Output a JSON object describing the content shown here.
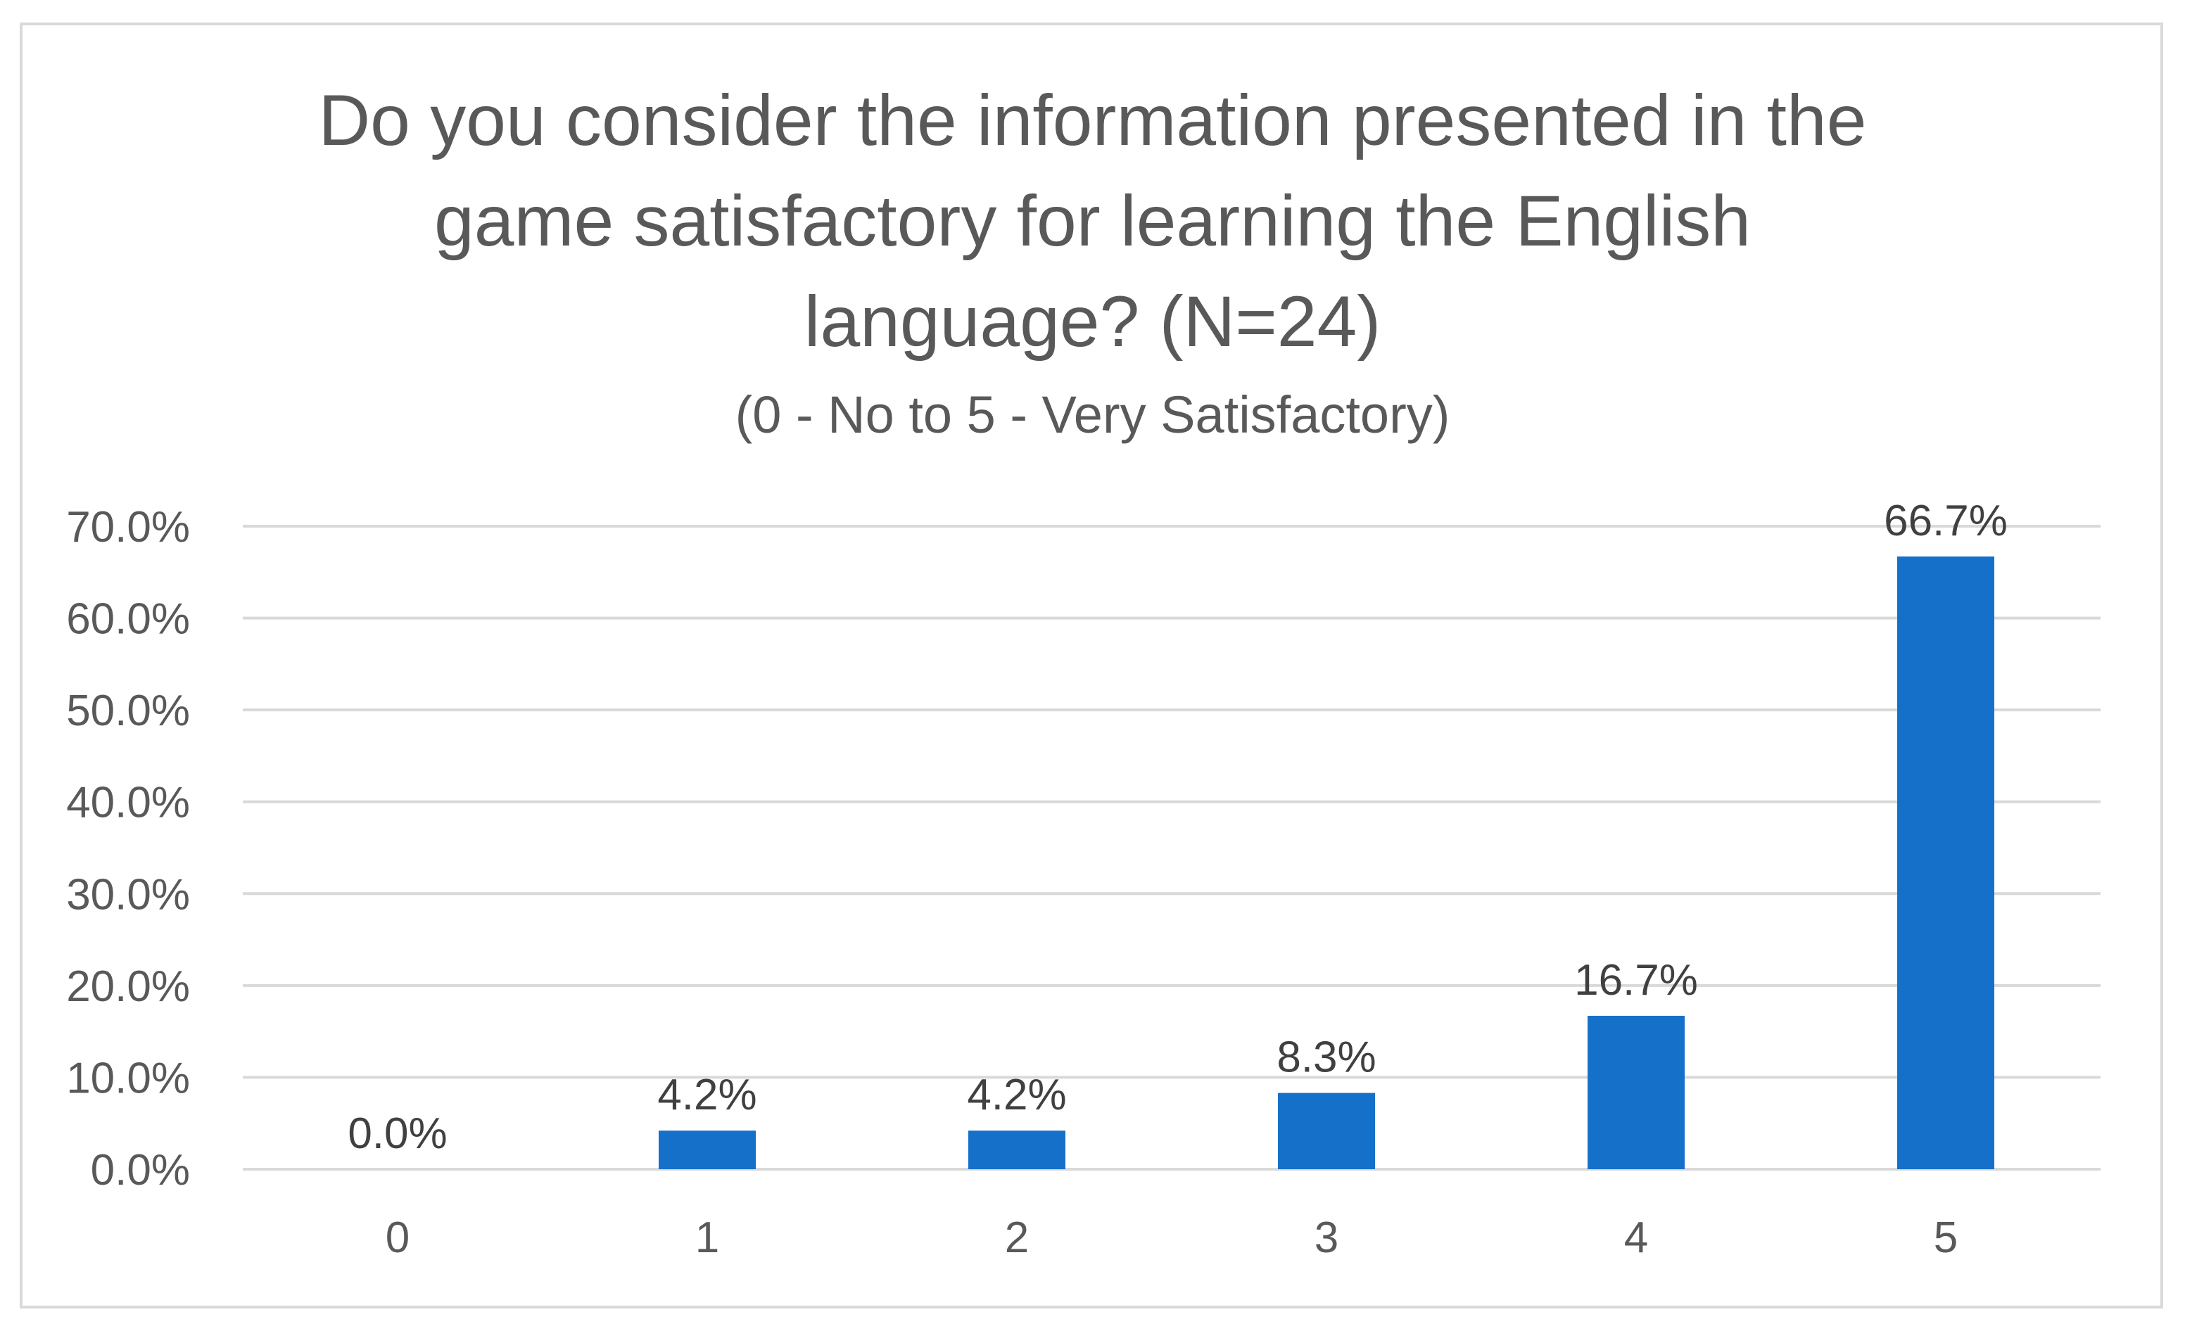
{
  "chart_data": {
    "type": "bar",
    "title_lines": [
      "Do you consider the information presented in the",
      "game satisfactory for learning the English",
      "language? (N=24)"
    ],
    "subtitle": "(0 - No to 5 - Very Satisfactory)",
    "xlabel": "",
    "ylabel": "",
    "categories": [
      "0",
      "1",
      "2",
      "3",
      "4",
      "5"
    ],
    "values": [
      0.0,
      4.2,
      4.2,
      8.3,
      16.7,
      66.7
    ],
    "data_labels": [
      "0.0%",
      "4.2%",
      "4.2%",
      "8.3%",
      "16.7%",
      "66.7%"
    ],
    "ylim": [
      0,
      70
    ],
    "yticks": [
      0,
      10,
      20,
      30,
      40,
      50,
      60,
      70
    ],
    "ytick_labels": [
      "0.0%",
      "10.0%",
      "20.0%",
      "30.0%",
      "40.0%",
      "50.0%",
      "60.0%",
      "70.0%"
    ],
    "grid": true,
    "legend": "none",
    "bar_color": "#1570C9",
    "grid_color": "#d9d9d9"
  }
}
